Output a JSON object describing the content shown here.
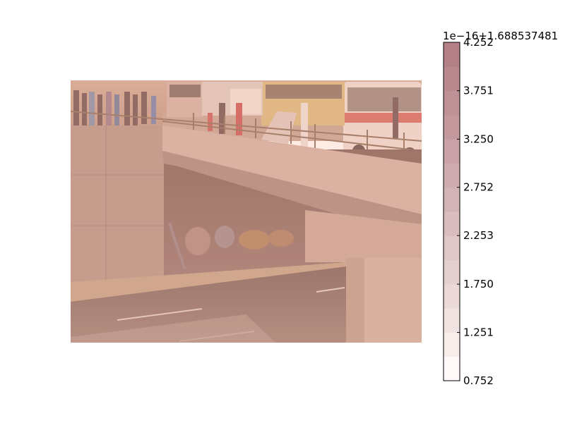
{
  "chart_data": {
    "type": "heatmap",
    "image_description": "",
    "overlay": {
      "colormap": "Reds",
      "alpha": 0.5
    },
    "colorbar": {
      "offset_label": "1e−16+1.688537481",
      "ticks": [
        "0.752",
        "1.251",
        "1.750",
        "2.253",
        "2.752",
        "3.250",
        "3.751",
        "4.252"
      ],
      "min": 0.752,
      "max": 4.252,
      "levels": 14
    },
    "colors": {
      "band_low": "#fff5f0",
      "band_high": "#67000d"
    }
  }
}
